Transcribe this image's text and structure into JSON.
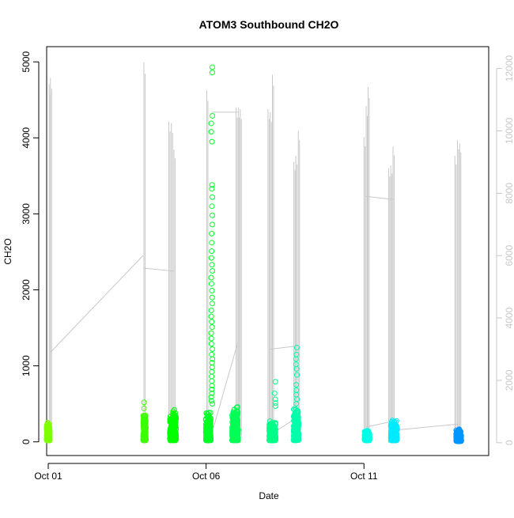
{
  "chart_data": {
    "type": "scatter",
    "title": "ATOM3 Southbound CH2O",
    "xlabel": "Date",
    "ylabel": "CH2O",
    "x_ticks": [
      "Oct 01",
      "Oct 06",
      "Oct 11"
    ],
    "x_tick_days": [
      1,
      6,
      11
    ],
    "xlim_days": [
      0.95,
      14.95
    ],
    "ylim": [
      -180,
      5200
    ],
    "y_ticks": [
      0,
      1000,
      2000,
      3000,
      4000,
      5000
    ],
    "secondary_axis": {
      "side": "right",
      "ylim": [
        -410,
        12700
      ],
      "y_ticks": [
        0,
        2000,
        4000,
        6000,
        8000,
        10000,
        12000
      ],
      "color": "#c8c8c8"
    },
    "grid": false,
    "point_marker": "open-circle",
    "altitude_line_color": "#c8c8c8",
    "clusters": [
      {
        "day": 1.0,
        "spread": 0.05,
        "low": 20,
        "high": 260,
        "color": "#7fff00"
      },
      {
        "day": 4.05,
        "spread": 0.04,
        "low": 20,
        "high": 380,
        "color": "#3cff00"
      },
      {
        "day": 4.95,
        "spread": 0.1,
        "low": 20,
        "high": 440,
        "color": "#00ff00"
      },
      {
        "day": 6.07,
        "spread": 0.08,
        "low": 20,
        "high": 420,
        "color": "#00ff28"
      },
      {
        "day": 6.92,
        "spread": 0.1,
        "low": 20,
        "high": 480,
        "color": "#00ff55"
      },
      {
        "day": 8.1,
        "spread": 0.1,
        "low": 20,
        "high": 280,
        "color": "#00ff88"
      },
      {
        "day": 8.85,
        "spread": 0.08,
        "low": 20,
        "high": 460,
        "color": "#00ffaa"
      },
      {
        "day": 11.1,
        "spread": 0.08,
        "low": 20,
        "high": 160,
        "color": "#00ffe6"
      },
      {
        "day": 11.95,
        "spread": 0.1,
        "low": 20,
        "high": 300,
        "color": "#00eaff"
      },
      {
        "day": 14.0,
        "spread": 0.08,
        "low": 10,
        "high": 170,
        "color": "#0096ff"
      }
    ],
    "outliers": [
      {
        "day": 4.05,
        "values": [
          520,
          440
        ],
        "color": "#3cff00"
      },
      {
        "day": 6.18,
        "values": [
          4930,
          4860,
          4290,
          4190,
          4080,
          3950,
          3380,
          3330,
          3220,
          3100,
          2980,
          2860,
          2740,
          2620,
          2510,
          2420,
          2330,
          2250,
          2160,
          2080,
          1990,
          1900,
          1820,
          1730,
          1650,
          1580,
          1510,
          1430,
          1360,
          1290,
          1220,
          1150,
          1090,
          1040,
          980,
          920,
          860,
          800,
          740,
          690,
          640,
          590,
          540,
          500
        ],
        "color": "#00ff28"
      },
      {
        "day": 8.18,
        "values": [
          790,
          640,
          560,
          510,
          470
        ],
        "color": "#00ff88"
      },
      {
        "day": 8.86,
        "values": [
          1240,
          1150,
          1090,
          1020,
          960,
          880,
          750,
          680,
          620,
          560,
          500
        ],
        "color": "#00ffaa"
      }
    ],
    "altitude_peaks": [
      {
        "day": 1.03,
        "alt": 11500
      },
      {
        "day": 1.07,
        "alt": 11700
      },
      {
        "day": 4.03,
        "alt": 12200
      },
      {
        "day": 4.82,
        "alt": 10300
      },
      {
        "day": 4.9,
        "alt": 10250
      },
      {
        "day": 4.98,
        "alt": 9400
      },
      {
        "day": 6.02,
        "alt": 11300
      },
      {
        "day": 6.95,
        "alt": 10750
      },
      {
        "day": 7.02,
        "alt": 10750
      },
      {
        "day": 7.08,
        "alt": 10700
      },
      {
        "day": 7.96,
        "alt": 10700
      },
      {
        "day": 8.03,
        "alt": 10600
      },
      {
        "day": 8.1,
        "alt": 11800
      },
      {
        "day": 8.78,
        "alt": 9000
      },
      {
        "day": 8.84,
        "alt": 9200
      },
      {
        "day": 8.92,
        "alt": 10000
      },
      {
        "day": 11.0,
        "alt": 9800
      },
      {
        "day": 11.07,
        "alt": 10800
      },
      {
        "day": 11.13,
        "alt": 11400
      },
      {
        "day": 11.78,
        "alt": 8800
      },
      {
        "day": 11.85,
        "alt": 8900
      },
      {
        "day": 11.92,
        "alt": 9500
      },
      {
        "day": 13.88,
        "alt": 9200
      },
      {
        "day": 13.96,
        "alt": 9700
      },
      {
        "day": 14.03,
        "alt": 9600
      }
    ],
    "altitude_connectors": [
      [
        1.07,
        2900,
        4.0,
        6000
      ],
      [
        4.03,
        5600,
        4.98,
        5500
      ],
      [
        6.18,
        10600,
        7.0,
        10600
      ],
      [
        6.18,
        300,
        7.0,
        3200
      ],
      [
        8.03,
        3000,
        8.86,
        3100
      ],
      [
        8.1,
        300,
        8.86,
        800
      ],
      [
        11.05,
        7900,
        11.95,
        7800
      ],
      [
        11.05,
        500,
        11.95,
        700
      ],
      [
        11.95,
        400,
        14.0,
        600
      ]
    ]
  }
}
